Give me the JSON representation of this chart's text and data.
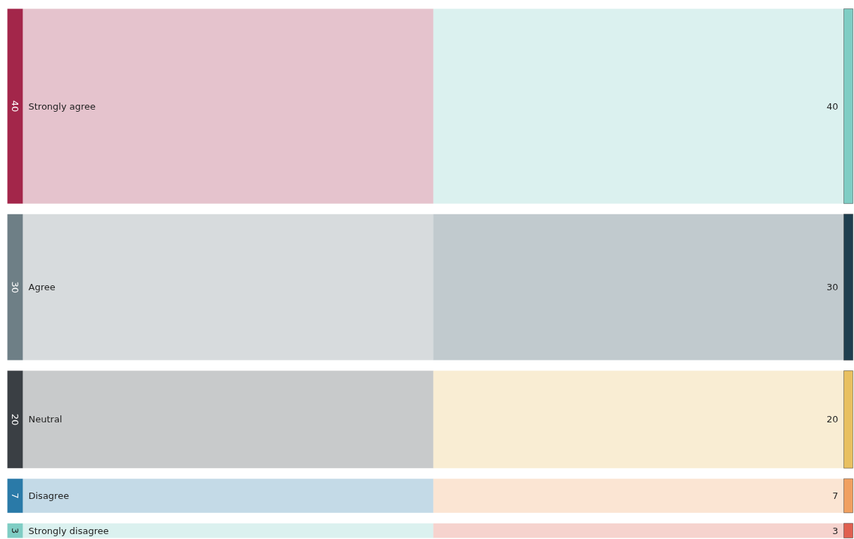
{
  "chart_data": {
    "type": "other",
    "categories": [
      "Strongly agree",
      "Agree",
      "Neutral",
      "Disagree",
      "Strongly disagree"
    ],
    "series": [
      {
        "values": [
          40,
          30,
          20,
          7,
          3
        ],
        "colors": [
          "#a3264a",
          "#6e7f86",
          "#3a3f44",
          "#2a7aa8",
          "#7fcdc4"
        ]
      },
      {
        "values": [
          40,
          30,
          20,
          7,
          3
        ],
        "colors": [
          "#7fcdc4",
          "#1f3f4f",
          "#e8c060",
          "#f0a060",
          "#e06050"
        ]
      }
    ],
    "data_labels": true
  }
}
